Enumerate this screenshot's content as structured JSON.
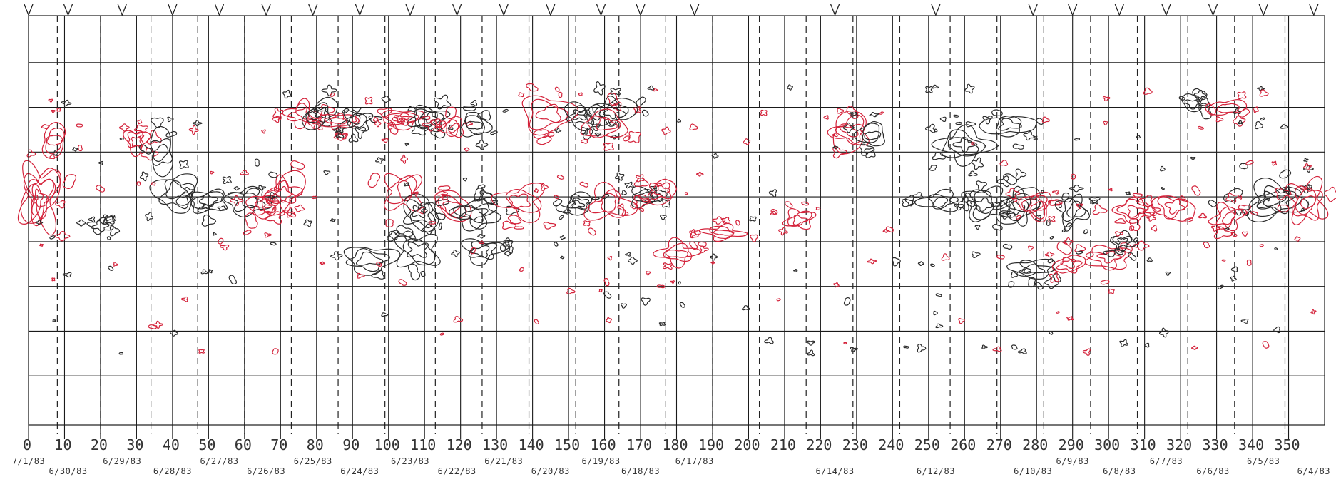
{
  "chart_data": {
    "type": "contour",
    "title": "",
    "xlabel": "",
    "ylabel": "",
    "xlim": [
      0,
      360
    ],
    "ylim": [
      -90,
      90
    ],
    "x_ticks": [
      0,
      10,
      20,
      30,
      40,
      50,
      60,
      70,
      80,
      90,
      100,
      110,
      120,
      130,
      140,
      150,
      160,
      170,
      180,
      190,
      200,
      210,
      220,
      230,
      240,
      250,
      260,
      270,
      280,
      290,
      300,
      310,
      320,
      330,
      340,
      350
    ],
    "latitude_lines": [
      -70,
      -50,
      -30,
      -10,
      10,
      30,
      50,
      70
    ],
    "dates": [
      {
        "label": "7/1/83",
        "lon": 0,
        "row": 0
      },
      {
        "label": "6/30/83",
        "lon": 11,
        "row": 1
      },
      {
        "label": "6/29/83",
        "lon": 26,
        "row": 0
      },
      {
        "label": "6/28/83",
        "lon": 40,
        "row": 1
      },
      {
        "label": "6/27/83",
        "lon": 53,
        "row": 0
      },
      {
        "label": "6/26/83",
        "lon": 66,
        "row": 1
      },
      {
        "label": "6/25/83",
        "lon": 79,
        "row": 0
      },
      {
        "label": "6/24/83",
        "lon": 92,
        "row": 1
      },
      {
        "label": "6/23/83",
        "lon": 106,
        "row": 0
      },
      {
        "label": "6/22/83",
        "lon": 119,
        "row": 1
      },
      {
        "label": "6/21/83",
        "lon": 132,
        "row": 0
      },
      {
        "label": "6/20/83",
        "lon": 145,
        "row": 1
      },
      {
        "label": "6/19/83",
        "lon": 159,
        "row": 0
      },
      {
        "label": "6/18/83",
        "lon": 170,
        "row": 1
      },
      {
        "label": "6/17/83",
        "lon": 185,
        "row": 0
      },
      {
        "label": "6/14/83",
        "lon": 224,
        "row": 1
      },
      {
        "label": "6/12/83",
        "lon": 252,
        "row": 1
      },
      {
        "label": "6/10/83",
        "lon": 279,
        "row": 1
      },
      {
        "label": "6/9/83",
        "lon": 290,
        "row": 0
      },
      {
        "label": "6/8/83",
        "lon": 303,
        "row": 1
      },
      {
        "label": "6/7/83",
        "lon": 316,
        "row": 0
      },
      {
        "label": "6/6/83",
        "lon": 329,
        "row": 1
      },
      {
        "label": "6/5/83",
        "lon": 343,
        "row": 0
      },
      {
        "label": "6/4/83",
        "lon": 357,
        "row": 1
      }
    ],
    "date_line_lons": [
      8,
      20,
      34,
      47,
      60,
      73,
      86,
      99,
      113,
      126,
      139,
      152,
      164,
      177,
      190,
      203,
      216,
      229,
      242,
      256,
      269,
      282,
      295,
      308,
      322,
      335,
      349
    ],
    "top_markers": [
      0,
      11,
      26,
      40,
      53,
      66,
      79,
      92,
      106,
      119,
      132,
      145,
      159,
      170,
      185,
      224,
      252,
      279,
      290,
      303,
      316,
      329,
      343,
      357
    ],
    "series": [
      {
        "polarity": "negative",
        "color": "#2b2b2b"
      },
      {
        "polarity": "positive",
        "color": "#d4223a"
      }
    ],
    "regions": [
      {
        "lon": 3,
        "lat": 10,
        "rx": 5,
        "ry": 14,
        "polarity": "positive",
        "levels": 6
      },
      {
        "lon": 7,
        "lat": 35,
        "rx": 4,
        "ry": 6,
        "polarity": "positive",
        "levels": 3
      },
      {
        "lon": 30,
        "lat": 35,
        "rx": 3,
        "ry": 5,
        "polarity": "positive",
        "levels": 3
      },
      {
        "lon": 37,
        "lat": 30,
        "rx": 4,
        "ry": 8,
        "polarity": "negative",
        "levels": 3
      },
      {
        "lon": 41,
        "lat": 12,
        "rx": 6,
        "ry": 8,
        "polarity": "negative",
        "levels": 3
      },
      {
        "lon": 50,
        "lat": 8,
        "rx": 5,
        "ry": 5,
        "polarity": "negative",
        "levels": 3
      },
      {
        "lon": 61,
        "lat": 8,
        "rx": 6,
        "ry": 6,
        "polarity": "negative",
        "levels": 3
      },
      {
        "lon": 71,
        "lat": 12,
        "rx": 5,
        "ry": 8,
        "polarity": "positive",
        "levels": 4
      },
      {
        "lon": 65,
        "lat": 6,
        "rx": 4,
        "ry": 5,
        "polarity": "positive",
        "levels": 3
      },
      {
        "lon": 20,
        "lat": -3,
        "rx": 3,
        "ry": 3,
        "polarity": "negative",
        "levels": 2
      },
      {
        "lon": 76,
        "lat": 47,
        "rx": 4,
        "ry": 5,
        "polarity": "positive",
        "levels": 3
      },
      {
        "lon": 81,
        "lat": 47,
        "rx": 4,
        "ry": 6,
        "polarity": "negative",
        "levels": 4
      },
      {
        "lon": 86,
        "lat": 44,
        "rx": 4,
        "ry": 4,
        "polarity": "positive",
        "levels": 3
      },
      {
        "lon": 91,
        "lat": 44,
        "rx": 4,
        "ry": 4,
        "polarity": "negative",
        "levels": 3
      },
      {
        "lon": 104,
        "lat": 45,
        "rx": 5,
        "ry": 4,
        "polarity": "positive",
        "levels": 4
      },
      {
        "lon": 111,
        "lat": 45,
        "rx": 5,
        "ry": 5,
        "polarity": "negative",
        "levels": 4
      },
      {
        "lon": 118,
        "lat": 41,
        "rx": 3,
        "ry": 4,
        "polarity": "positive",
        "levels": 3
      },
      {
        "lon": 124,
        "lat": 42,
        "rx": 4,
        "ry": 5,
        "polarity": "negative",
        "levels": 3
      },
      {
        "lon": 144,
        "lat": 47,
        "rx": 7,
        "ry": 8,
        "polarity": "positive",
        "levels": 3
      },
      {
        "lon": 153,
        "lat": 46,
        "rx": 4,
        "ry": 5,
        "polarity": "negative",
        "levels": 3
      },
      {
        "lon": 162,
        "lat": 48,
        "rx": 5,
        "ry": 7,
        "polarity": "negative",
        "levels": 4
      },
      {
        "lon": 160,
        "lat": 42,
        "rx": 6,
        "ry": 6,
        "polarity": "positive",
        "levels": 3
      },
      {
        "lon": 104,
        "lat": 12,
        "rx": 5,
        "ry": 8,
        "polarity": "positive",
        "levels": 3
      },
      {
        "lon": 109,
        "lat": 3,
        "rx": 5,
        "ry": 7,
        "polarity": "negative",
        "levels": 4
      },
      {
        "lon": 118,
        "lat": 6,
        "rx": 5,
        "ry": 6,
        "polarity": "positive",
        "levels": 3
      },
      {
        "lon": 124,
        "lat": 2,
        "rx": 6,
        "ry": 6,
        "polarity": "negative",
        "levels": 4
      },
      {
        "lon": 137,
        "lat": 8,
        "rx": 6,
        "ry": 7,
        "polarity": "positive",
        "levels": 3
      },
      {
        "lon": 153,
        "lat": 7,
        "rx": 4,
        "ry": 4,
        "polarity": "negative",
        "levels": 4
      },
      {
        "lon": 161,
        "lat": 7,
        "rx": 6,
        "ry": 7,
        "polarity": "positive",
        "levels": 3
      },
      {
        "lon": 171,
        "lat": 10,
        "rx": 4,
        "ry": 4,
        "polarity": "negative",
        "levels": 3
      },
      {
        "lon": 176,
        "lat": 12,
        "rx": 4,
        "ry": 5,
        "polarity": "positive",
        "levels": 3
      },
      {
        "lon": 95,
        "lat": -18,
        "rx": 7,
        "ry": 6,
        "polarity": "negative",
        "levels": 3
      },
      {
        "lon": 108,
        "lat": -14,
        "rx": 6,
        "ry": 7,
        "polarity": "negative",
        "levels": 3
      },
      {
        "lon": 126,
        "lat": -14,
        "rx": 5,
        "ry": 5,
        "polarity": "negative",
        "levels": 3
      },
      {
        "lon": 180,
        "lat": -15,
        "rx": 5,
        "ry": 5,
        "polarity": "positive",
        "levels": 3
      },
      {
        "lon": 193,
        "lat": -6,
        "rx": 5,
        "ry": 3,
        "polarity": "positive",
        "levels": 3
      },
      {
        "lon": 214,
        "lat": 0,
        "rx": 4,
        "ry": 4,
        "polarity": "positive",
        "levels": 3
      },
      {
        "lon": 228,
        "lat": 39,
        "rx": 6,
        "ry": 7,
        "polarity": "positive",
        "levels": 4
      },
      {
        "lon": 234,
        "lat": 38,
        "rx": 4,
        "ry": 5,
        "polarity": "negative",
        "levels": 3
      },
      {
        "lon": 260,
        "lat": 33,
        "rx": 7,
        "ry": 7,
        "polarity": "negative",
        "levels": 4
      },
      {
        "lon": 272,
        "lat": 42,
        "rx": 6,
        "ry": 5,
        "polarity": "negative",
        "levels": 3
      },
      {
        "lon": 253,
        "lat": 8,
        "rx": 5,
        "ry": 4,
        "polarity": "negative",
        "levels": 3
      },
      {
        "lon": 266,
        "lat": 7,
        "rx": 6,
        "ry": 7,
        "polarity": "negative",
        "levels": 4
      },
      {
        "lon": 275,
        "lat": 6,
        "rx": 5,
        "ry": 8,
        "polarity": "negative",
        "levels": 5
      },
      {
        "lon": 280,
        "lat": 6,
        "rx": 4,
        "ry": 6,
        "polarity": "positive",
        "levels": 4
      },
      {
        "lon": 290,
        "lat": 4,
        "rx": 4,
        "ry": 6,
        "polarity": "negative",
        "levels": 3
      },
      {
        "lon": 307,
        "lat": 4,
        "rx": 5,
        "ry": 5,
        "polarity": "positive",
        "levels": 3
      },
      {
        "lon": 318,
        "lat": 5,
        "rx": 5,
        "ry": 6,
        "polarity": "positive",
        "levels": 3
      },
      {
        "lon": 279,
        "lat": -22,
        "rx": 6,
        "ry": 4,
        "polarity": "negative",
        "levels": 3
      },
      {
        "lon": 289,
        "lat": -20,
        "rx": 4,
        "ry": 4,
        "polarity": "positive",
        "levels": 3
      },
      {
        "lon": 300,
        "lat": -17,
        "rx": 6,
        "ry": 5,
        "polarity": "positive",
        "levels": 3
      },
      {
        "lon": 304,
        "lat": -10,
        "rx": 3,
        "ry": 4,
        "polarity": "negative",
        "levels": 3
      },
      {
        "lon": 346,
        "lat": 8,
        "rx": 7,
        "ry": 8,
        "polarity": "negative",
        "levels": 5
      },
      {
        "lon": 355,
        "lat": 8,
        "rx": 5,
        "ry": 9,
        "polarity": "positive",
        "levels": 4
      },
      {
        "lon": 333,
        "lat": 1,
        "rx": 4,
        "ry": 5,
        "polarity": "positive",
        "levels": 3
      },
      {
        "lon": 323,
        "lat": 52,
        "rx": 3,
        "ry": 3,
        "polarity": "negative",
        "levels": 2
      },
      {
        "lon": 333,
        "lat": 50,
        "rx": 4,
        "ry": 4,
        "polarity": "positive",
        "levels": 2
      }
    ]
  }
}
